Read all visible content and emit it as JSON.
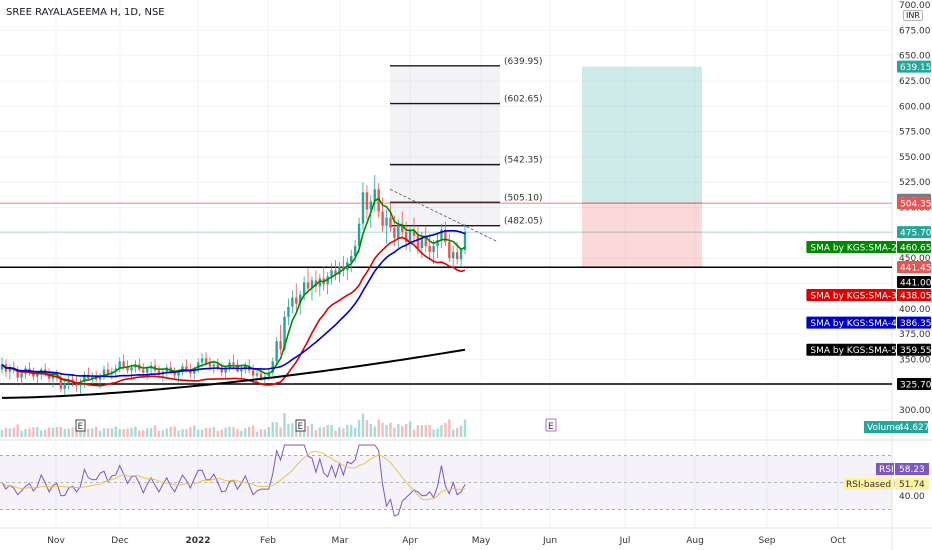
{
  "title": "SREE RAYALASEEMA H, 1D, NSE",
  "currency": "INR",
  "time_labels": [
    "Nov",
    "Dec",
    "2022",
    "Feb",
    "Mar",
    "Apr",
    "May",
    "Jun",
    "Jul",
    "Aug",
    "Sep",
    "Oct"
  ],
  "chart_data": [
    {
      "type": "candlestick",
      "title": "SREE RAYALASEEMA H, 1D, NSE",
      "y_ticks": [
        300,
        325,
        350,
        375,
        400,
        425,
        450,
        475,
        500,
        525,
        550,
        575,
        600,
        625,
        650,
        675,
        700
      ],
      "y_tick_labels": [
        "300.00",
        "325.00",
        "350.00",
        "375.00",
        "400.00",
        "425.00",
        "450.00",
        "475.00",
        "500.00",
        "525.00",
        "550.00",
        "575.00",
        "600.00",
        "625.00",
        "650.00",
        "675.00",
        "700.00"
      ],
      "x_categories": [
        "Nov",
        "Dec",
        "2022",
        "Feb",
        "Mar",
        "Apr",
        "May",
        "Jun",
        "Jul",
        "Aug",
        "Sep",
        "Oct"
      ],
      "last_close": 475.7,
      "horizontal_levels": [
        {
          "value": 441.0,
          "label": "441.00",
          "color": "#000000"
        },
        {
          "value": 325.7,
          "label": "325.70",
          "color": "#000000"
        },
        {
          "value": 504.35,
          "label": "504.35",
          "color": "#ef5350"
        }
      ],
      "fib_levels": [
        {
          "value": 639.95,
          "label": "(639.95)"
        },
        {
          "value": 602.65,
          "label": "(602.65)"
        },
        {
          "value": 542.35,
          "label": "(542.35)"
        },
        {
          "value": 505.1,
          "label": "(505.10)"
        },
        {
          "value": 482.05,
          "label": "(482.05)"
        }
      ],
      "position_tool": {
        "entry": 504.35,
        "target": 639.15,
        "stop": 441.45
      },
      "price_tags": [
        {
          "value": 639.15,
          "label": "639.15",
          "color": "#26a69a"
        },
        {
          "value": 507.6,
          "label": "507.60",
          "color": "#787b86"
        },
        {
          "value": 504.35,
          "label": "504.35",
          "color": "#ef5350"
        },
        {
          "value": 475.7,
          "label": "475.70",
          "color": "#26a69a"
        },
        {
          "value": 460.65,
          "label": "460.65",
          "color": "#008800",
          "name": "SMA by KGS:SMA-2"
        },
        {
          "value": 441.45,
          "label": "441.45",
          "color": "#ef5350"
        },
        {
          "value": 441.0,
          "label": "441.00",
          "color": "#000000"
        },
        {
          "value": 438.05,
          "label": "438.05",
          "color": "#e00000",
          "name": "SMA by KGS:SMA-3"
        },
        {
          "value": 386.35,
          "label": "386.35",
          "color": "#0000cc",
          "name": "SMA by KGS:SMA-4"
        },
        {
          "value": 359.55,
          "label": "359.55",
          "color": "#000000",
          "name": "SMA by KGS:SMA-5"
        },
        {
          "value": 325.7,
          "label": "325.70",
          "color": "#000000"
        }
      ],
      "series": [
        {
          "name": "SMA by KGS:SMA-2",
          "color": "#008800",
          "last": 460.65
        },
        {
          "name": "SMA by KGS:SMA-3",
          "color": "#e00000",
          "last": 438.05
        },
        {
          "name": "SMA by KGS:SMA-4",
          "color": "#0000cc",
          "last": 386.35
        },
        {
          "name": "SMA by KGS:SMA-5",
          "color": "#000000",
          "last": 359.55
        }
      ],
      "candles": [
        [
          340,
          352,
          336,
          345
        ],
        [
          345,
          350,
          333,
          338
        ],
        [
          338,
          345,
          330,
          342
        ],
        [
          342,
          348,
          336,
          339
        ],
        [
          339,
          343,
          328,
          332
        ],
        [
          332,
          340,
          325,
          336
        ],
        [
          336,
          344,
          331,
          341
        ],
        [
          341,
          347,
          334,
          337
        ],
        [
          337,
          342,
          329,
          333
        ],
        [
          333,
          339,
          326,
          335
        ],
        [
          335,
          342,
          330,
          340
        ],
        [
          340,
          346,
          333,
          336
        ],
        [
          336,
          341,
          327,
          331
        ],
        [
          331,
          338,
          322,
          334
        ],
        [
          334,
          340,
          328,
          332
        ],
        [
          332,
          337,
          318,
          321
        ],
        [
          321,
          330,
          315,
          326
        ],
        [
          326,
          334,
          320,
          330
        ],
        [
          330,
          336,
          323,
          327
        ],
        [
          327,
          333,
          318,
          324
        ],
        [
          324,
          331,
          316,
          328
        ],
        [
          328,
          338,
          322,
          335
        ],
        [
          335,
          342,
          329,
          331
        ],
        [
          331,
          337,
          324,
          333
        ],
        [
          333,
          339,
          327,
          330
        ],
        [
          330,
          336,
          321,
          334
        ],
        [
          334,
          344,
          330,
          340
        ],
        [
          340,
          347,
          334,
          336
        ],
        [
          336,
          342,
          330,
          338
        ],
        [
          338,
          345,
          332,
          341
        ],
        [
          341,
          352,
          337,
          348
        ],
        [
          348,
          355,
          340,
          343
        ],
        [
          343,
          349,
          336,
          339
        ],
        [
          339,
          345,
          331,
          342
        ],
        [
          342,
          349,
          337,
          345
        ],
        [
          345,
          351,
          338,
          340
        ],
        [
          340,
          346,
          333,
          337
        ],
        [
          337,
          343,
          330,
          341
        ],
        [
          341,
          348,
          336,
          344
        ],
        [
          344,
          350,
          337,
          339
        ],
        [
          339,
          344,
          331,
          335
        ],
        [
          335,
          341,
          328,
          338
        ],
        [
          338,
          345,
          333,
          342
        ],
        [
          342,
          348,
          335,
          337
        ],
        [
          337,
          342,
          330,
          334
        ],
        [
          334,
          340,
          327,
          338
        ],
        [
          338,
          346,
          334,
          343
        ],
        [
          343,
          350,
          337,
          340
        ],
        [
          340,
          346,
          332,
          336
        ],
        [
          336,
          343,
          330,
          341
        ],
        [
          341,
          351,
          337,
          347
        ],
        [
          347,
          356,
          342,
          351
        ],
        [
          351,
          357,
          343,
          346
        ],
        [
          346,
          352,
          339,
          343
        ],
        [
          343,
          349,
          336,
          345
        ],
        [
          345,
          351,
          339,
          341
        ],
        [
          341,
          346,
          333,
          337
        ],
        [
          337,
          344,
          331,
          342
        ],
        [
          342,
          350,
          338,
          347
        ],
        [
          347,
          355,
          342,
          345
        ],
        [
          345,
          350,
          337,
          338
        ],
        [
          338,
          344,
          331,
          340
        ],
        [
          340,
          347,
          336,
          344
        ],
        [
          344,
          350,
          336,
          339
        ],
        [
          339,
          345,
          331,
          334
        ],
        [
          334,
          340,
          327,
          336
        ],
        [
          336,
          342,
          329,
          331
        ],
        [
          331,
          337,
          324,
          333
        ],
        [
          333,
          340,
          329,
          337
        ],
        [
          337,
          352,
          334,
          348
        ],
        [
          348,
          372,
          345,
          368
        ],
        [
          368,
          384,
          355,
          360
        ],
        [
          360,
          398,
          358,
          392
        ],
        [
          392,
          410,
          384,
          402
        ],
        [
          402,
          418,
          395,
          411
        ],
        [
          411,
          425,
          398,
          405
        ],
        [
          405,
          418,
          394,
          414
        ],
        [
          414,
          432,
          408,
          426
        ],
        [
          426,
          440,
          415,
          420
        ],
        [
          420,
          432,
          408,
          428
        ],
        [
          428,
          438,
          416,
          422
        ],
        [
          422,
          434,
          412,
          430
        ],
        [
          430,
          442,
          418,
          424
        ],
        [
          424,
          436,
          414,
          432
        ],
        [
          432,
          445,
          424,
          438
        ],
        [
          438,
          448,
          428,
          434
        ],
        [
          434,
          446,
          426,
          442
        ],
        [
          442,
          452,
          432,
          438
        ],
        [
          438,
          450,
          428,
          446
        ],
        [
          446,
          458,
          436,
          452
        ],
        [
          452,
          468,
          446,
          462
        ],
        [
          462,
          490,
          455,
          484
        ],
        [
          484,
          525,
          478,
          515
        ],
        [
          515,
          522,
          488,
          498
        ],
        [
          498,
          512,
          480,
          506
        ],
        [
          506,
          532,
          496,
          518
        ],
        [
          518,
          524,
          490,
          496
        ],
        [
          496,
          510,
          476,
          482
        ],
        [
          482,
          498,
          464,
          490
        ],
        [
          490,
          504,
          476,
          480
        ],
        [
          480,
          492,
          462,
          470
        ],
        [
          470,
          488,
          460,
          484
        ],
        [
          484,
          496,
          470,
          476
        ],
        [
          476,
          486,
          458,
          466
        ],
        [
          466,
          482,
          456,
          478
        ],
        [
          478,
          490,
          464,
          472
        ],
        [
          472,
          482,
          454,
          460
        ],
        [
          460,
          476,
          450,
          470
        ],
        [
          470,
          482,
          456,
          462
        ],
        [
          462,
          474,
          448,
          456
        ],
        [
          456,
          468,
          444,
          462
        ],
        [
          462,
          474,
          450,
          468
        ],
        [
          468,
          484,
          460,
          478
        ],
        [
          478,
          486,
          462,
          466
        ],
        [
          466,
          474,
          446,
          450
        ],
        [
          450,
          462,
          440,
          456
        ],
        [
          456,
          466,
          444,
          449
        ],
        [
          449,
          460,
          441,
          458
        ],
        [
          458,
          484,
          454,
          476
        ]
      ],
      "volume": {
        "label": "Volume",
        "value": "44.627K",
        "marker": "E"
      },
      "rsi": {
        "label": "RSI",
        "value": "58.23",
        "ma_label": "RSI-based MA",
        "ma_value": "51.74",
        "tick": "40.00",
        "bands": [
          30,
          70
        ]
      }
    }
  ]
}
